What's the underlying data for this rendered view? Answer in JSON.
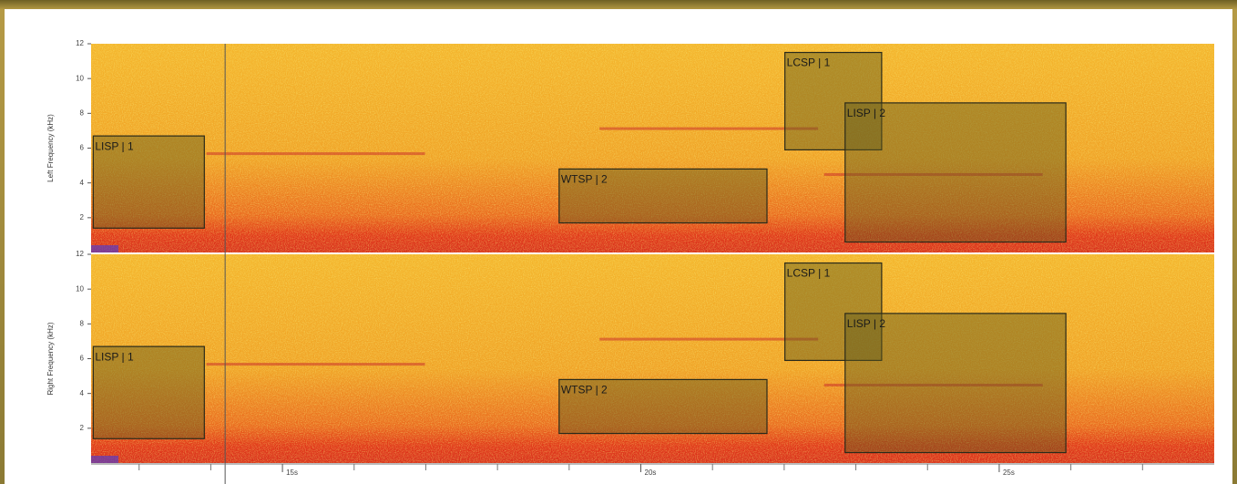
{
  "chart_data": [
    {
      "type": "spectrogram",
      "ylabel": "Left Frequency (kHz)",
      "xlim": [
        12.33,
        28.0
      ],
      "ylim": [
        0,
        12
      ],
      "yticks": [
        2,
        4,
        6,
        8,
        10,
        12
      ],
      "cursor": 14.2,
      "annotations": [
        {
          "label": "LISP | 1",
          "t": [
            12.36,
            13.91
          ],
          "f": [
            1.4,
            6.7
          ]
        },
        {
          "label": "WTSP | 2",
          "t": [
            18.86,
            21.76
          ],
          "f": [
            1.7,
            4.8
          ]
        },
        {
          "label": "LCSP | 1",
          "t": [
            22.01,
            23.36
          ],
          "f": [
            5.9,
            11.5
          ]
        },
        {
          "label": "LISP | 2",
          "t": [
            22.85,
            25.93
          ],
          "f": [
            0.6,
            8.6
          ]
        }
      ]
    },
    {
      "type": "spectrogram",
      "ylabel": "Right Frequency (kHz)",
      "xlim": [
        12.33,
        28.0
      ],
      "ylim": [
        0,
        12
      ],
      "yticks": [
        2,
        4,
        6,
        8,
        10,
        12
      ],
      "cursor": 14.2,
      "xticks": [
        {
          "value": 15,
          "label": "15s"
        },
        {
          "value": 20,
          "label": "20s"
        },
        {
          "value": 25,
          "label": "25s"
        }
      ],
      "xminorticks": [
        13,
        14,
        16,
        17,
        18,
        19,
        21,
        22,
        23,
        24,
        26,
        27
      ],
      "annotations": [
        {
          "label": "LISP | 1",
          "t": [
            12.36,
            13.91
          ],
          "f": [
            1.4,
            6.7
          ]
        },
        {
          "label": "WTSP | 2",
          "t": [
            18.86,
            21.76
          ],
          "f": [
            1.7,
            4.8
          ]
        },
        {
          "label": "LCSP | 1",
          "t": [
            22.01,
            23.36
          ],
          "f": [
            5.9,
            11.5
          ]
        },
        {
          "label": "LISP | 2",
          "t": [
            22.85,
            25.93
          ],
          "f": [
            0.6,
            8.6
          ]
        }
      ]
    }
  ]
}
